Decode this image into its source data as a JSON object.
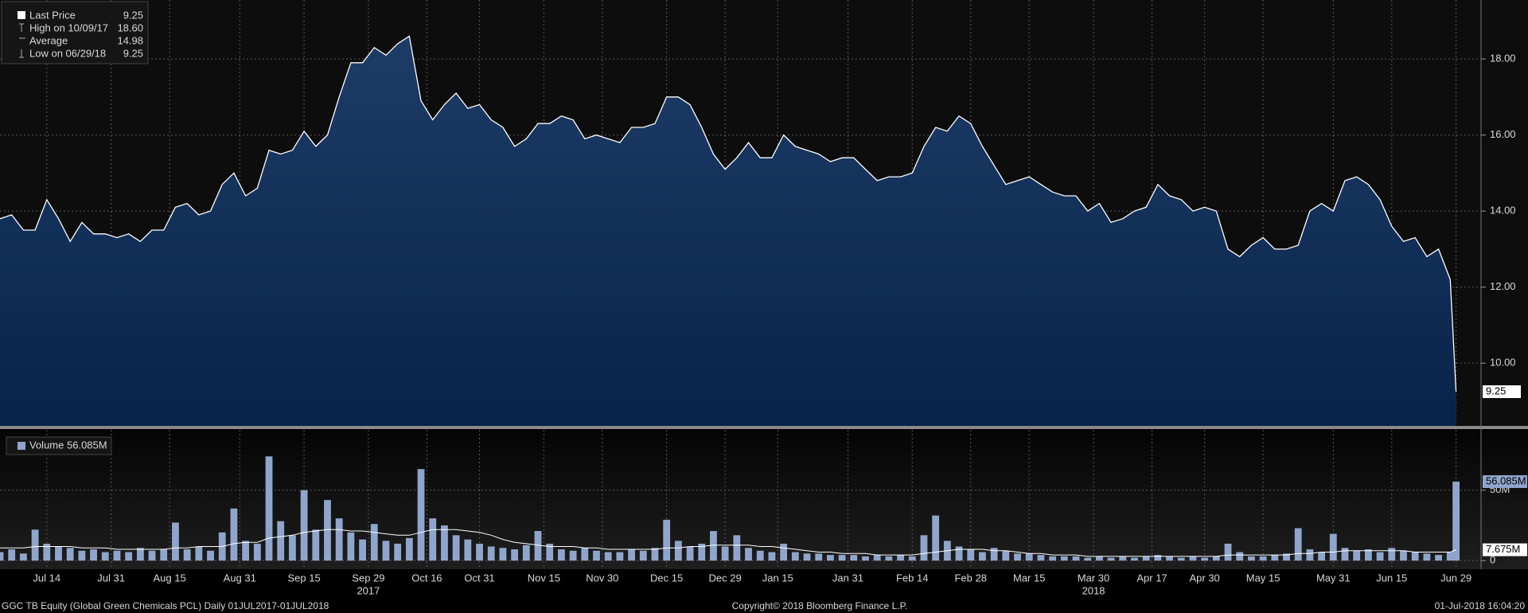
{
  "chart_data": {
    "type": "area",
    "x": [
      0,
      2,
      4,
      6,
      8,
      10,
      12,
      14,
      16,
      18,
      20,
      22,
      24,
      26,
      28,
      30,
      32,
      34,
      36,
      38,
      40,
      42,
      44,
      46,
      48,
      50,
      52,
      54,
      56,
      58,
      60,
      62,
      64,
      66,
      68,
      70,
      72,
      74,
      76,
      78,
      80,
      82,
      84,
      86,
      88,
      90,
      92,
      94,
      96,
      98,
      100,
      102,
      104,
      106,
      108,
      110,
      112,
      114,
      116,
      118,
      120,
      122,
      124,
      126,
      128,
      130,
      132,
      134,
      136,
      138,
      140,
      142,
      144,
      146,
      148,
      150,
      152,
      154,
      156,
      158,
      160,
      162,
      164,
      166,
      168,
      170,
      172,
      174,
      176,
      178,
      180,
      182,
      184,
      186,
      188,
      190,
      192,
      194,
      196,
      198,
      200,
      202,
      204,
      206,
      208,
      210,
      212,
      214,
      216,
      218,
      220,
      222,
      224,
      226,
      228,
      230,
      232,
      234,
      236,
      238,
      240,
      242,
      244,
      246,
      248,
      249
    ],
    "xlim": [
      0,
      253
    ],
    "xticks": [
      {
        "value": 8,
        "label": "Jul 14"
      },
      {
        "value": 19,
        "label": "Jul 31"
      },
      {
        "value": 29,
        "label": "Aug 15"
      },
      {
        "value": 41,
        "label": "Aug 31"
      },
      {
        "value": 52,
        "label": "Sep 15"
      },
      {
        "value": 63,
        "label": "Sep 29"
      },
      {
        "value": 73,
        "label": "Oct 16"
      },
      {
        "value": 82,
        "label": "Oct 31"
      },
      {
        "value": 93,
        "label": "Nov 15"
      },
      {
        "value": 103,
        "label": "Nov 30"
      },
      {
        "value": 114,
        "label": "Dec 15"
      },
      {
        "value": 124,
        "label": "Dec 29"
      },
      {
        "value": 133,
        "label": "Jan 15"
      },
      {
        "value": 145,
        "label": "Jan 31"
      },
      {
        "value": 156,
        "label": "Feb 14"
      },
      {
        "value": 166,
        "label": "Feb 28"
      },
      {
        "value": 176,
        "label": "Mar 15"
      },
      {
        "value": 187,
        "label": "Mar 30"
      },
      {
        "value": 197,
        "label": "Apr 17"
      },
      {
        "value": 206,
        "label": "Apr 30"
      },
      {
        "value": 216,
        "label": "May 15"
      },
      {
        "value": 228,
        "label": "May 31"
      },
      {
        "value": 238,
        "label": "Jun 15"
      },
      {
        "value": 249,
        "label": "Jun 29"
      }
    ],
    "year_labels": [
      {
        "value": 63,
        "label": "2017"
      },
      {
        "value": 187,
        "label": "2018"
      }
    ],
    "ylim": [
      8.35,
      19.55
    ],
    "yticks": [
      {
        "value": 10,
        "label": "10.00"
      },
      {
        "value": 12,
        "label": "12.00"
      },
      {
        "value": 14,
        "label": "14.00"
      },
      {
        "value": 16,
        "label": "16.00"
      },
      {
        "value": 18,
        "label": "18.00"
      }
    ],
    "grid": true,
    "series": [
      {
        "name": "Last Price",
        "color": "#ffffff",
        "values": [
          13.8,
          13.9,
          13.5,
          13.5,
          14.3,
          13.8,
          13.2,
          13.7,
          13.4,
          13.4,
          13.3,
          13.4,
          13.2,
          13.5,
          13.5,
          14.1,
          14.2,
          13.9,
          14.0,
          14.7,
          15.0,
          14.4,
          14.6,
          15.6,
          15.5,
          15.6,
          16.1,
          15.7,
          16.0,
          17.0,
          17.9,
          17.9,
          18.3,
          18.1,
          18.4,
          18.6,
          16.9,
          16.4,
          16.8,
          17.1,
          16.7,
          16.8,
          16.4,
          16.2,
          15.7,
          15.9,
          16.3,
          16.3,
          16.5,
          16.4,
          15.9,
          16.0,
          15.9,
          15.8,
          16.2,
          16.2,
          16.3,
          17.0,
          17.0,
          16.8,
          16.2,
          15.5,
          15.1,
          15.4,
          15.8,
          15.4,
          15.4,
          16.0,
          15.7,
          15.6,
          15.5,
          15.3,
          15.4,
          15.4,
          15.1,
          14.8,
          14.9,
          14.9,
          15.0,
          15.7,
          16.2,
          16.1,
          16.5,
          16.3,
          15.7,
          15.2,
          14.7,
          14.8,
          14.9,
          14.7,
          14.5,
          14.4,
          14.4,
          14.0,
          14.2,
          13.7,
          13.8,
          14.0,
          14.1,
          14.7,
          14.4,
          14.3,
          14.0,
          14.1,
          14.0,
          13.0,
          12.8,
          13.1,
          13.3,
          13.0,
          13.0,
          13.1,
          14.0,
          14.2,
          14.0,
          14.8,
          14.9,
          14.7,
          14.3,
          13.6,
          13.2,
          13.3,
          12.8,
          13.0,
          12.2,
          9.25
        ]
      }
    ],
    "legend": [
      {
        "name": "Last Price",
        "value_label": "9.25"
      },
      {
        "name": "High on 10/09/17",
        "value_label": "18.60"
      },
      {
        "name": "Average",
        "value_label": "14.98"
      },
      {
        "name": "Low on 06/29/18",
        "value_label": "9.25"
      }
    ],
    "price_tag": 9.25,
    "volume": {
      "type": "bar",
      "name": "Volume",
      "legend_value": "56.085M",
      "ylim": [
        -5,
        90
      ],
      "yticks": [
        0,
        {
          "value": 50,
          "label": "50M"
        }
      ],
      "color": "#8fa5cc",
      "values": [
        6,
        8,
        5,
        22,
        12,
        10,
        9,
        7,
        8,
        6,
        7,
        6,
        9,
        7,
        8,
        27,
        8,
        10,
        7,
        20,
        37,
        14,
        12,
        74,
        28,
        18,
        50,
        22,
        43,
        30,
        20,
        15,
        26,
        14,
        12,
        16,
        65,
        30,
        25,
        18,
        15,
        12,
        10,
        9,
        8,
        11,
        21,
        12,
        8,
        7,
        9,
        7,
        6,
        6,
        8,
        7,
        9,
        29,
        14,
        10,
        12,
        21,
        10,
        18,
        9,
        7,
        6,
        12,
        6,
        5,
        5,
        4,
        4,
        4,
        3,
        4,
        3,
        4,
        3,
        18,
        32,
        14,
        10,
        8,
        6,
        9,
        7,
        5,
        5,
        4,
        3,
        3,
        3,
        2,
        3,
        2,
        3,
        2,
        3,
        4,
        3,
        2,
        3,
        2,
        3,
        12,
        6,
        3,
        3,
        4,
        5,
        23,
        8,
        6,
        19,
        9,
        7,
        8,
        6,
        9,
        7,
        6,
        5,
        4,
        6,
        56.085
      ],
      "average": {
        "color": "#ffffff",
        "values": [
          9,
          9,
          9,
          10,
          10,
          10,
          10,
          9,
          9,
          9,
          8,
          8,
          8,
          8,
          8,
          9,
          9,
          10,
          10,
          10,
          12,
          13,
          13,
          16,
          17,
          18,
          20,
          21,
          22,
          22,
          21,
          21,
          20,
          19,
          18,
          18,
          20,
          22,
          22,
          22,
          21,
          20,
          18,
          15,
          13,
          12,
          11,
          10,
          10,
          10,
          9,
          9,
          8,
          8,
          8,
          8,
          8,
          9,
          9,
          10,
          10,
          11,
          11,
          11,
          11,
          10,
          10,
          9,
          8,
          7,
          6,
          6,
          5,
          5,
          5,
          4,
          4,
          4,
          4,
          5,
          6,
          7,
          8,
          8,
          8,
          7,
          7,
          6,
          5,
          5,
          4,
          4,
          4,
          3,
          3,
          3,
          3,
          3,
          3,
          3,
          3,
          3,
          3,
          3,
          3,
          4,
          4,
          4,
          4,
          4,
          4,
          5,
          5,
          6,
          6,
          7,
          7,
          7,
          7,
          7,
          7,
          6,
          6,
          6,
          6,
          7.675
        ]
      },
      "tags": [
        {
          "value": 56.085,
          "label": "56.085M"
        },
        {
          "value": 7.675,
          "label": "7.675M"
        }
      ]
    },
    "footer": {
      "left": "GGC TB Equity (Global Green Chemicals PCL)  Daily 01JUL2017-01JUL2018",
      "center": "Copyright© 2018 Bloomberg Finance L.P.",
      "right": "01-Jul-2018 16:04:20"
    }
  }
}
